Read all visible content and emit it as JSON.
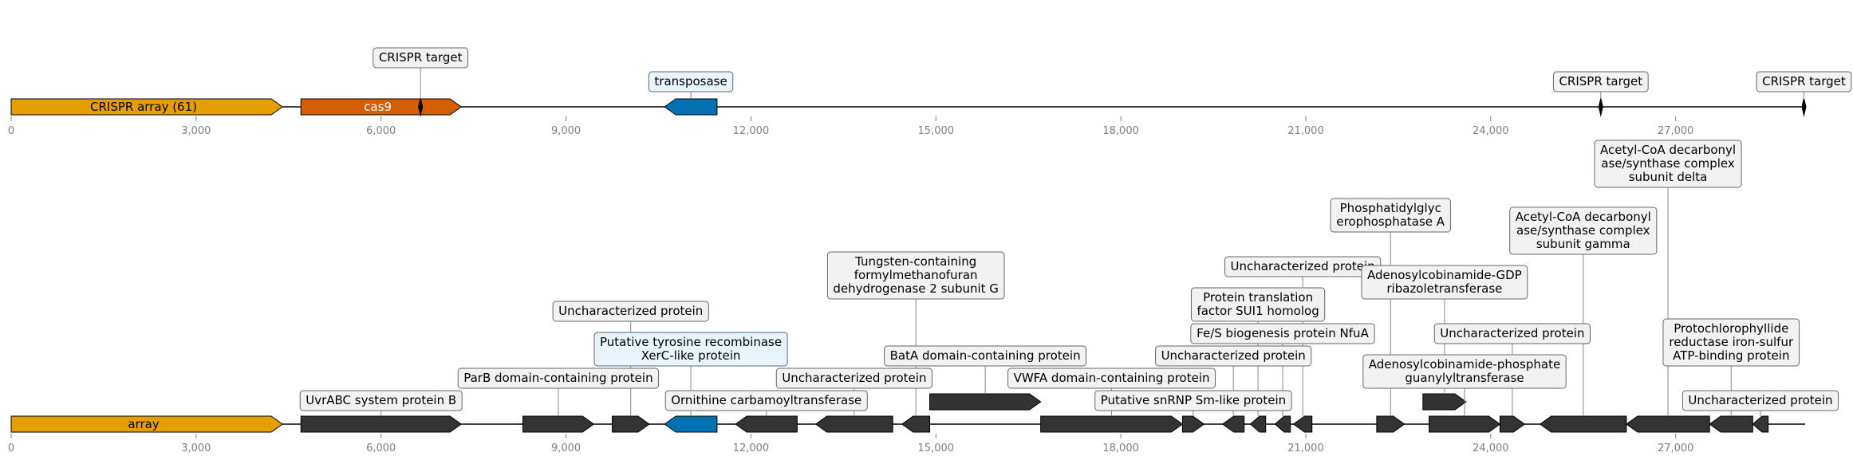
{
  "colors": {
    "array": "#E69F00",
    "cas": "#D55E00",
    "transposase": "#0072B2",
    "gene": "#333333",
    "label_box": "#f2f2f2",
    "label_box_blue": "#e8f5fc",
    "tick_text": "#808080"
  },
  "axis": {
    "min": 0,
    "max": 29100,
    "ticks": [
      0,
      3000,
      6000,
      9000,
      12000,
      15000,
      18000,
      21000,
      24000,
      27000
    ],
    "tick_labels": [
      "0",
      "3,000",
      "6,000",
      "9,000",
      "12,000",
      "15,000",
      "18,000",
      "21,000",
      "24,000",
      "27,000"
    ]
  },
  "tracks": [
    {
      "id": "top",
      "features": [
        {
          "start": 0,
          "end": 4400,
          "strand": 1,
          "kind": "array",
          "label": "CRISPR array (61)",
          "label_inside": true
        },
        {
          "start": 4700,
          "end": 7300,
          "strand": 1,
          "kind": "cas",
          "label": "cas9",
          "label_inside": true
        },
        {
          "start": 10600,
          "end": 11450,
          "strand": -1,
          "kind": "transposase",
          "label": "transposase",
          "label_inside": false,
          "level": 1
        },
        {
          "start": 6600,
          "end": 6680,
          "strand": 0,
          "kind": "target",
          "label": "CRISPR target",
          "label_inside": false,
          "level": 2
        },
        {
          "start": 25750,
          "end": 25820,
          "strand": 0,
          "kind": "target",
          "label": "CRISPR target",
          "label_inside": false,
          "level": 1
        },
        {
          "start": 29050,
          "end": 29110,
          "strand": 0,
          "kind": "target",
          "label": "CRISPR target",
          "label_inside": false,
          "level": 1
        }
      ]
    },
    {
      "id": "bottom",
      "features": [
        {
          "start": 0,
          "end": 4400,
          "strand": 1,
          "kind": "array",
          "label": "array",
          "label_inside": true
        },
        {
          "start": 4700,
          "end": 7300,
          "strand": 1,
          "kind": "gene",
          "label": "UvrABC system protein B",
          "level": 1
        },
        {
          "start": 8300,
          "end": 9450,
          "strand": 1,
          "kind": "gene",
          "label": "ParB domain-containing protein",
          "level": 2
        },
        {
          "start": 9750,
          "end": 10350,
          "strand": 1,
          "kind": "gene",
          "label": "Uncharacterized protein",
          "level": 5
        },
        {
          "start": 10600,
          "end": 11450,
          "strand": -1,
          "kind": "transposase",
          "label": "Putative tyrosine recombinase\nXerC-like protein",
          "level": 3
        },
        {
          "start": 11750,
          "end": 12750,
          "strand": -1,
          "kind": "gene",
          "label": "Ornithine carbamoyltransferase",
          "level": 1
        },
        {
          "start": 13050,
          "end": 14300,
          "strand": -1,
          "kind": "gene",
          "label": "Uncharacterized protein",
          "level": 2
        },
        {
          "start": 14450,
          "end": 14900,
          "strand": -1,
          "kind": "gene",
          "label": "Tungsten-containing\nformylmethanofuran\ndehydrogenase 2 subunit G",
          "level": 6
        },
        {
          "start": 14900,
          "end": 16700,
          "strand": 1,
          "kind": "gene",
          "label": "BatA domain-containing protein",
          "level": 3,
          "raised": true
        },
        {
          "start": 16700,
          "end": 19000,
          "strand": 1,
          "kind": "gene",
          "label": "VWFA domain-containing protein",
          "level": 2
        },
        {
          "start": 19000,
          "end": 19350,
          "strand": 1,
          "kind": "gene",
          "label": "Putative snRNP Sm-like protein",
          "level": 1
        },
        {
          "start": 19650,
          "end": 20000,
          "strand": -1,
          "kind": "gene",
          "label": "Uncharacterized protein",
          "level": 3
        },
        {
          "start": 20100,
          "end": 20350,
          "strand": -1,
          "kind": "gene",
          "label": "Protein translation\nfactor SUI1 homolog",
          "level": 5
        },
        {
          "start": 20500,
          "end": 20750,
          "strand": -1,
          "kind": "gene",
          "label": "Fe/S biogenesis protein NfuA",
          "level": 4
        },
        {
          "start": 20800,
          "end": 21100,
          "strand": -1,
          "kind": "gene",
          "label": "Uncharacterized protein",
          "level": 7
        },
        {
          "start": 22150,
          "end": 22600,
          "strand": 1,
          "kind": "gene",
          "label": "Phosphatidylglyc\nerophosphatase A",
          "level": 9
        },
        {
          "start": 22900,
          "end": 23600,
          "strand": 1,
          "kind": "gene",
          "label": "Adenosylcobinamide-GDP\nribazoletransferase",
          "level": 6,
          "raised": true
        },
        {
          "start": 23000,
          "end": 24150,
          "strand": 1,
          "kind": "gene",
          "label": "Adenosylcobinamide-phosphate\nguanylyltransferase",
          "level": 2
        },
        {
          "start": 24150,
          "end": 24550,
          "strand": 1,
          "kind": "gene",
          "label": "Uncharacterized protein",
          "level": 4
        },
        {
          "start": 24800,
          "end": 26200,
          "strand": -1,
          "kind": "gene",
          "label": "Acetyl-CoA decarbonyl\nase/synthase complex\nsubunit gamma",
          "level": 8
        },
        {
          "start": 26200,
          "end": 27550,
          "strand": -1,
          "kind": "gene",
          "label": "Acetyl-CoA decarbonyl\nase/synthase complex\nsubunit delta",
          "level": 11
        },
        {
          "start": 27550,
          "end": 28250,
          "strand": -1,
          "kind": "gene",
          "label": "Protochlorophyllide\nreductase iron-sulfur\nATP-binding protein",
          "level": 3
        },
        {
          "start": 28250,
          "end": 28500,
          "strand": -1,
          "kind": "gene",
          "label": "Uncharacterized protein",
          "level": 1
        }
      ]
    }
  ]
}
